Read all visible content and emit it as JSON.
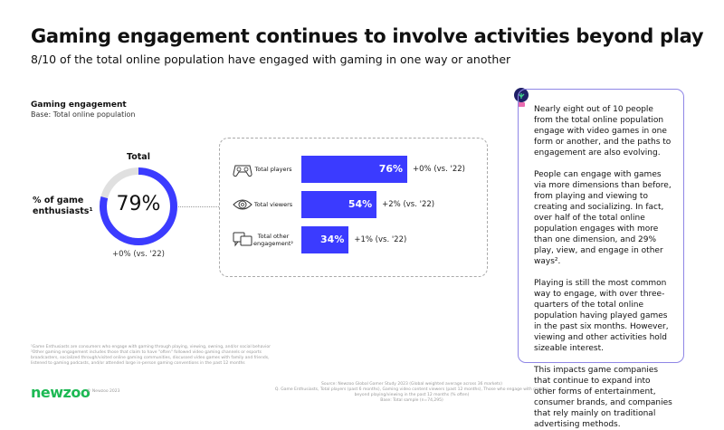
{
  "header": {
    "title": "Gaming engagement continues to involve activities beyond play",
    "subtitle": "8/10 of the total online population have engaged with gaming in one way or another"
  },
  "chart_title": "Gaming engagement",
  "chart_base": "Base: Total online population",
  "chart_data": [
    {
      "type": "pie",
      "subtype": "donut",
      "header": "Total",
      "label": "% of game enthusiasts¹",
      "value": 79,
      "value_label": "79%",
      "change": "+0% (vs. '22)",
      "colors": {
        "fill": "#3b3bff",
        "rest": "#e0e0e0"
      }
    },
    {
      "type": "bar",
      "orientation": "horizontal",
      "xlim": [
        0,
        100
      ],
      "color": "#3b3bff",
      "categories": [
        "Total players",
        "Total viewers",
        "Total other engagement²"
      ],
      "icons": [
        "gamepad-icon",
        "eye-icon",
        "chat-bubbles-icon"
      ],
      "values": [
        76,
        54,
        34
      ],
      "value_labels": [
        "76%",
        "54%",
        "34%"
      ],
      "changes": [
        "+0% (vs. '22)",
        "+2% (vs. '22)",
        "+1% (vs. '22)"
      ]
    }
  ],
  "panel": {
    "icon": "lightbulb-icon",
    "border_color": "#8f86e6",
    "paragraphs": [
      "Nearly eight out of 10 people from the total online population engage with video games in one form or another, and the paths to engagement are also evolving.",
      "People can engage with games via more dimensions than before, from playing and viewing to creating and socializing. In fact, over half of the total online population engages with more than one dimension, and 29% play, view, and engage in other ways².",
      "Playing is still the most common way to engage, with over three-quarters of the total online population having played games in the past six months. However, viewing and other activities hold sizeable interest.",
      "This impacts game companies that continue to expand into other forms of entertainment, consumer brands, and companies that rely mainly on traditional advertising methods."
    ]
  },
  "footnotes": [
    "¹Game Enthusiasts are consumers who engage with gaming through playing, viewing, owning, and/or social behavior",
    "²Other gaming engagement includes those that claim to have \"often\" followed video gaming channels or esports broadcasters, socialized through/visited online gaming communities, discussed video games with family and friends, listened to gaming podcasts, and/or attended large in-person gaming conventions in the past 12 months"
  ],
  "footer": {
    "logo": "newzoo",
    "copyright": "© Newzoo 2023",
    "source": "Source: Newzoo Global Gamer Study 2023 (Global weighted average across 36 markets)",
    "question": "Q. Game Enthusiasts, Total players (past 6 months), Gaming video content viewers (past 12 months), Those who engage with gaming beyond playing/viewing in the past 12 months (% often)",
    "base": "Base: Total sample (n=74,295)",
    "brand_color": "#1db954"
  }
}
